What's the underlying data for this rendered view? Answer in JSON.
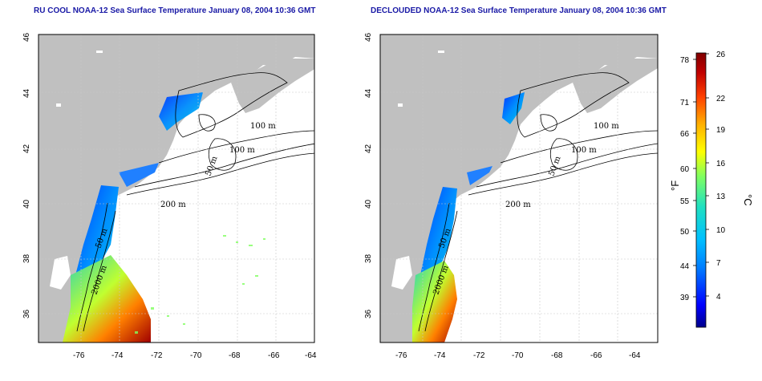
{
  "titles": {
    "left": "RU COOL NOAA-12 Sea Surface Temperature January 08, 2004 10:36 GMT",
    "right": "DECLOUDED NOAA-12 Sea Surface Temperature January 08, 2004 10:36 GMT"
  },
  "axes": {
    "lon_ticks": [
      "-76",
      "-74",
      "-72",
      "-70",
      "-68",
      "-66",
      "-64"
    ],
    "lat_ticks": [
      "46",
      "44",
      "42",
      "40",
      "38",
      "36"
    ]
  },
  "contour_labels": {
    "left": [
      "100 m",
      "100 m",
      "50 m",
      "200 m",
      "50 m",
      "2000 m"
    ],
    "right": [
      "100 m",
      "100 m",
      "50 m",
      "200 m",
      "50 m",
      "2000 m"
    ]
  },
  "colorbar": {
    "fahrenheit_ticks": [
      "78",
      "71",
      "66",
      "60",
      "55",
      "50",
      "44",
      "39"
    ],
    "celsius_ticks": [
      "26",
      "22",
      "19",
      "16",
      "13",
      "10",
      "7",
      "4"
    ],
    "fahrenheit_unit": "°F",
    "celsius_unit": "°C",
    "colors": [
      "#00008b",
      "#0000ff",
      "#0080ff",
      "#00c0ff",
      "#20e0c0",
      "#80ff60",
      "#ffff00",
      "#ffb000",
      "#ff4000",
      "#c00000",
      "#800000"
    ]
  },
  "colors": {
    "land": "#c0c0c0",
    "title": "#1a1aa6",
    "grid": "#c8c8c8"
  }
}
